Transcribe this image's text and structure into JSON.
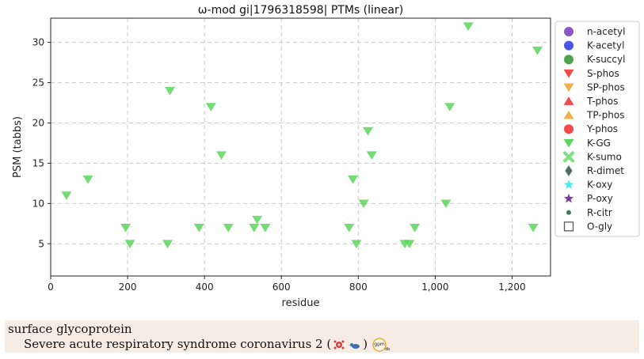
{
  "chart_data": {
    "type": "scatter",
    "title": "ω-mod gi|1796318598| PTMs (linear)",
    "xlabel": "residue",
    "ylabel": "PSM (tabbs)",
    "xlim": [
      0,
      1300
    ],
    "ylim": [
      1,
      33
    ],
    "xticks": [
      0,
      200,
      400,
      600,
      800,
      1000,
      1200
    ],
    "xtick_labels": [
      "0",
      "200",
      "400",
      "600",
      "800",
      "1,000",
      "1,200"
    ],
    "yticks": [
      5,
      10,
      15,
      20,
      25,
      30
    ],
    "ytick_labels": [
      "5",
      "10",
      "15",
      "20",
      "25",
      "30"
    ],
    "grid": true,
    "legend_position": "right",
    "legend": [
      {
        "label": "n-acetyl",
        "marker": "circle",
        "color": "#8e55c8"
      },
      {
        "label": "K-acetyl",
        "marker": "circle",
        "color": "#4d55e6"
      },
      {
        "label": "K-succyl",
        "marker": "circle",
        "color": "#4fa34f"
      },
      {
        "label": "S-phos",
        "marker": "triangle-down",
        "color": "#f04a4a"
      },
      {
        "label": "SP-phos",
        "marker": "triangle-down",
        "color": "#f2b04a"
      },
      {
        "label": "T-phos",
        "marker": "triangle-up",
        "color": "#f04a4a"
      },
      {
        "label": "TP-phos",
        "marker": "triangle-up",
        "color": "#f2b04a"
      },
      {
        "label": "Y-phos",
        "marker": "circle",
        "color": "#f04a4a"
      },
      {
        "label": "K-GG",
        "marker": "triangle-down",
        "color": "#5cd65c"
      },
      {
        "label": "K-sumo",
        "marker": "x",
        "color": "#7ee07e"
      },
      {
        "label": "R-dimet",
        "marker": "diamond",
        "color": "#4a6e5a"
      },
      {
        "label": "K-oxy",
        "marker": "star",
        "color": "#3ef0f0"
      },
      {
        "label": "P-oxy",
        "marker": "star",
        "color": "#7a3aa8"
      },
      {
        "label": "R-citr",
        "marker": "small-circle",
        "color": "#3f7a5a"
      },
      {
        "label": "O-gly",
        "marker": "square-open",
        "color": "#555555"
      }
    ],
    "series": [
      {
        "name": "K-GG",
        "color": "#5cd65c",
        "points": [
          {
            "x": 41,
            "y": 11
          },
          {
            "x": 97,
            "y": 13
          },
          {
            "x": 195,
            "y": 7
          },
          {
            "x": 206,
            "y": 5
          },
          {
            "x": 304,
            "y": 5
          },
          {
            "x": 310,
            "y": 24
          },
          {
            "x": 386,
            "y": 7
          },
          {
            "x": 417,
            "y": 22
          },
          {
            "x": 444,
            "y": 16
          },
          {
            "x": 462,
            "y": 7
          },
          {
            "x": 529,
            "y": 7
          },
          {
            "x": 537,
            "y": 8
          },
          {
            "x": 558,
            "y": 7
          },
          {
            "x": 776,
            "y": 7
          },
          {
            "x": 786,
            "y": 13
          },
          {
            "x": 795,
            "y": 5
          },
          {
            "x": 814,
            "y": 10
          },
          {
            "x": 825,
            "y": 19
          },
          {
            "x": 835,
            "y": 16
          },
          {
            "x": 921,
            "y": 5
          },
          {
            "x": 933,
            "y": 5
          },
          {
            "x": 947,
            "y": 7
          },
          {
            "x": 1028,
            "y": 10
          },
          {
            "x": 1038,
            "y": 22
          },
          {
            "x": 1086,
            "y": 32
          },
          {
            "x": 1255,
            "y": 7
          },
          {
            "x": 1266,
            "y": 29
          }
        ]
      }
    ]
  },
  "footer": {
    "protein": "surface glycoprotein",
    "organism": "Severe acute respiratory syndrome coronavirus 2 (",
    "organism_close": ")",
    "icons": [
      "virus-icon",
      "bird-icon",
      "gpmdb-icon"
    ],
    "gpm_label": "gpm",
    "gpm_sub": "db"
  }
}
